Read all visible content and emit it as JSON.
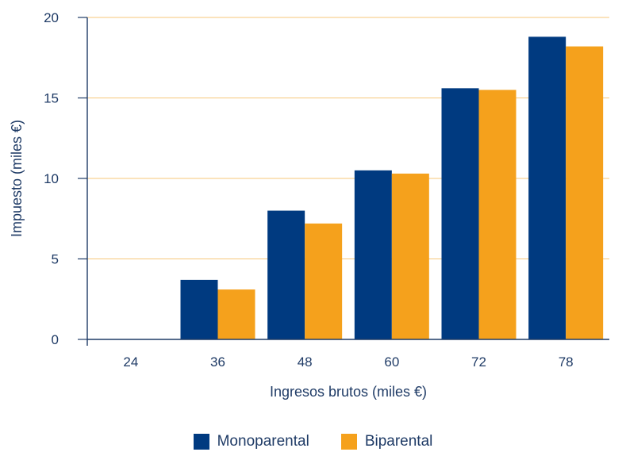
{
  "chart_data": {
    "type": "bar",
    "xlabel": "Ingresos brutos (miles €)",
    "ylabel": "Impuesto (miles €)",
    "categories": [
      "24",
      "36",
      "48",
      "60",
      "72",
      "78"
    ],
    "ylim": [
      0,
      20
    ],
    "yticks": [
      0,
      5,
      10,
      15,
      20
    ],
    "grid": true,
    "legend_position": "bottom",
    "series": [
      {
        "name": "Monoparental",
        "color": "#003a80",
        "values": [
          0,
          3.7,
          8.0,
          10.5,
          15.6,
          18.8
        ]
      },
      {
        "name": "Biparental",
        "color": "#f5a11c",
        "values": [
          0,
          3.1,
          7.2,
          10.3,
          15.5,
          18.2
        ]
      }
    ]
  },
  "style": {
    "axis_color": "#1f3b66",
    "grid_color": "#f7c77a"
  }
}
